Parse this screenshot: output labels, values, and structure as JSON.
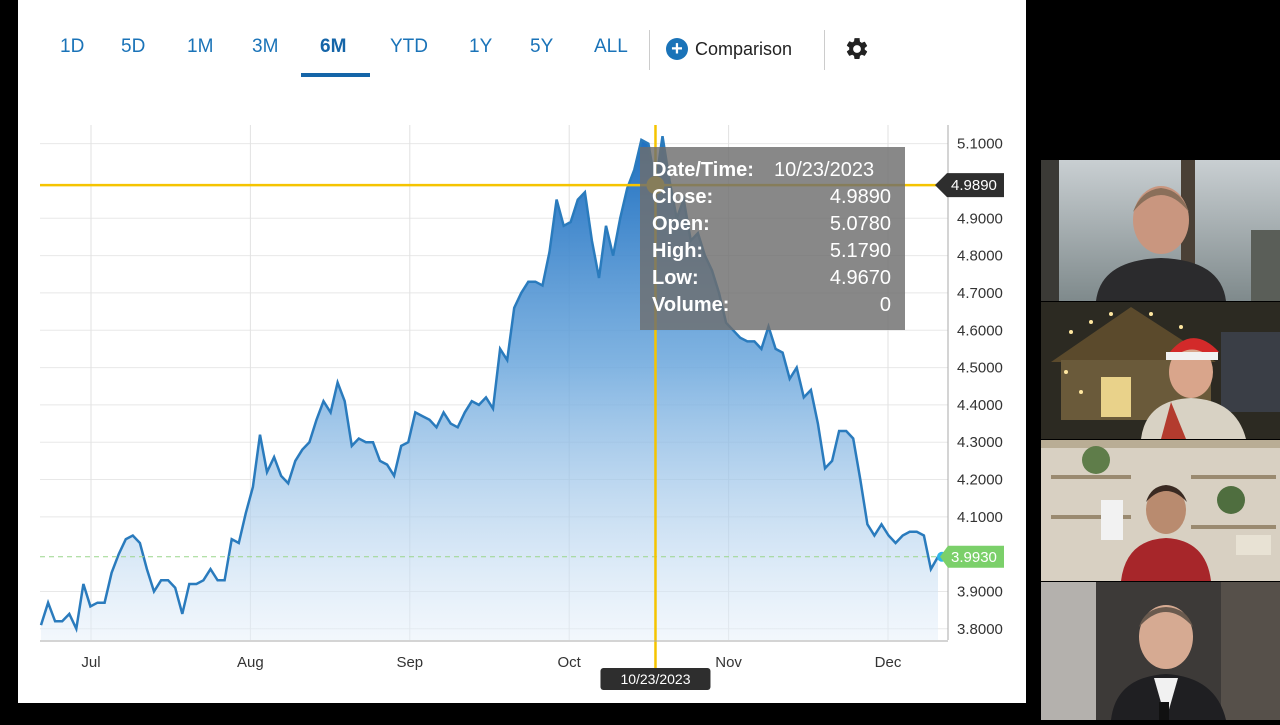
{
  "tabs": [
    {
      "label": "1D",
      "active": false
    },
    {
      "label": "5D",
      "active": false
    },
    {
      "label": "1M",
      "active": false
    },
    {
      "label": "3M",
      "active": false
    },
    {
      "label": "6M",
      "active": true
    },
    {
      "label": "YTD",
      "active": false
    },
    {
      "label": "1Y",
      "active": false
    },
    {
      "label": "5Y",
      "active": false
    },
    {
      "label": "ALL",
      "active": false
    }
  ],
  "comparison_label": "Comparison",
  "tooltip": {
    "date_label": "Date/Time:",
    "date_value": "10/23/2023",
    "close_label": "Close:",
    "close_value": "4.9890",
    "open_label": "Open:",
    "open_value": "5.0780",
    "high_label": "High:",
    "high_value": "5.1790",
    "low_label": "Low:",
    "low_value": "4.9670",
    "volume_label": "Volume:",
    "volume_value": "0"
  },
  "crosshair_date": "10/23/2023",
  "crosshair_value": "4.9890",
  "last_value": "3.9930",
  "colors": {
    "accent": "#1a73b8",
    "line": "#2a7bbd",
    "crosshair": "#f5c400",
    "last_badge": "#7bd06a"
  },
  "chart_data": {
    "type": "area",
    "ylim": [
      3.77,
      5.15
    ],
    "y_ticks": [
      "5.1000",
      "4.9000",
      "4.8000",
      "4.7000",
      "4.6000",
      "4.5000",
      "4.4000",
      "4.3000",
      "4.2000",
      "4.1000",
      "3.9000",
      "3.8000"
    ],
    "x_ticks": [
      "Jul",
      "Aug",
      "Sep",
      "Oct",
      "Nov",
      "Dec"
    ],
    "crosshair": {
      "date": "10/23/2023",
      "value": 4.989
    },
    "last_value": 3.993,
    "series": [
      {
        "values": [
          3.81,
          3.87,
          3.82,
          3.82,
          3.84,
          3.8,
          3.92,
          3.86,
          3.87,
          3.87,
          3.95,
          4.0,
          4.04,
          4.05,
          4.03,
          3.96,
          3.9,
          3.93,
          3.93,
          3.91,
          3.84,
          3.92,
          3.92,
          3.93,
          3.96,
          3.93,
          3.93,
          4.04,
          4.03,
          4.11,
          4.18,
          4.32,
          4.22,
          4.26,
          4.21,
          4.19,
          4.25,
          4.28,
          4.3,
          4.36,
          4.41,
          4.38,
          4.46,
          4.41,
          4.29,
          4.31,
          4.3,
          4.3,
          4.25,
          4.24,
          4.21,
          4.29,
          4.3,
          4.38,
          4.37,
          4.36,
          4.34,
          4.38,
          4.35,
          4.34,
          4.38,
          4.41,
          4.4,
          4.42,
          4.39,
          4.55,
          4.52,
          4.66,
          4.7,
          4.73,
          4.73,
          4.72,
          4.81,
          4.95,
          4.88,
          4.89,
          4.95,
          4.97,
          4.84,
          4.74,
          4.88,
          4.8,
          4.9,
          4.98,
          5.03,
          5.11,
          5.1,
          4.989,
          5.12,
          5.0,
          4.9,
          4.95,
          4.84,
          4.86,
          4.8,
          4.76,
          4.7,
          4.62,
          4.6,
          4.58,
          4.57,
          4.57,
          4.55,
          4.61,
          4.55,
          4.54,
          4.47,
          4.5,
          4.42,
          4.44,
          4.35,
          4.23,
          4.25,
          4.33,
          4.33,
          4.31,
          4.2,
          4.08,
          4.05,
          4.08,
          4.05,
          4.03,
          4.05,
          4.06,
          4.06,
          4.05,
          3.96,
          3.993
        ]
      }
    ]
  }
}
